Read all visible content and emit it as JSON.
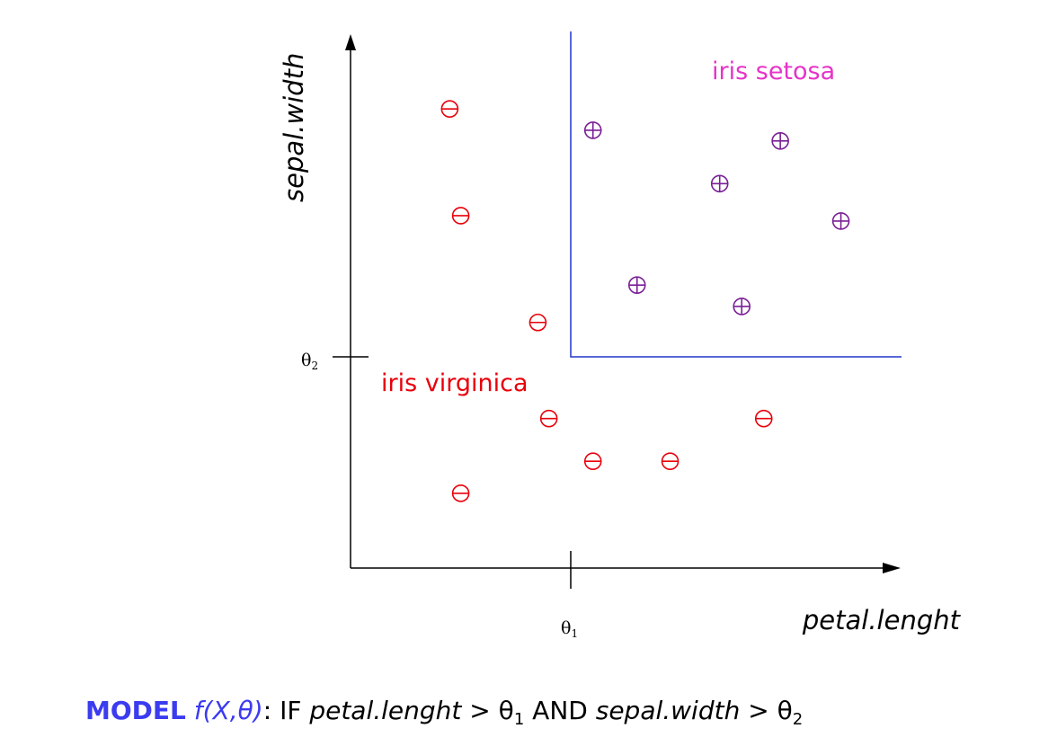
{
  "axes": {
    "x_label": "petal.lenght",
    "y_label": "sepal.width",
    "x_threshold_label": "θ",
    "x_threshold_sub": "1",
    "y_threshold_label": "θ",
    "y_threshold_sub": "2"
  },
  "regions": {
    "setosa": {
      "label": "iris setosa",
      "color": "#e633c8"
    },
    "virginica": {
      "label": "iris virginica",
      "color": "#e8000b"
    }
  },
  "colors": {
    "boundary": "#2233cc",
    "plus_marker": "#7a1f96",
    "minus_marker": "#e8000b",
    "model_keyword": "#3b3bf0"
  },
  "points": {
    "setosa_plus": [
      {
        "x": 0.44,
        "y": 0.82
      },
      {
        "x": 0.78,
        "y": 0.8
      },
      {
        "x": 0.67,
        "y": 0.72
      },
      {
        "x": 0.89,
        "y": 0.65
      },
      {
        "x": 0.52,
        "y": 0.53
      },
      {
        "x": 0.71,
        "y": 0.49
      }
    ],
    "virginica_minus": [
      {
        "x": 0.18,
        "y": 0.86
      },
      {
        "x": 0.2,
        "y": 0.66
      },
      {
        "x": 0.34,
        "y": 0.46
      },
      {
        "x": 0.36,
        "y": 0.28
      },
      {
        "x": 0.75,
        "y": 0.28
      },
      {
        "x": 0.44,
        "y": 0.2
      },
      {
        "x": 0.58,
        "y": 0.2
      },
      {
        "x": 0.2,
        "y": 0.14
      }
    ],
    "theta1": 0.4,
    "theta2": 0.39
  },
  "model": {
    "keyword": "MODEL",
    "function": "f(X,θ)",
    "colon": ": ",
    "if_text": "IF ",
    "var1": "petal.lenght",
    "gt1": " > θ",
    "sub1": "1",
    "and_text": " AND ",
    "var2": "sepal.width",
    "gt2": " > θ",
    "sub2": "2"
  }
}
